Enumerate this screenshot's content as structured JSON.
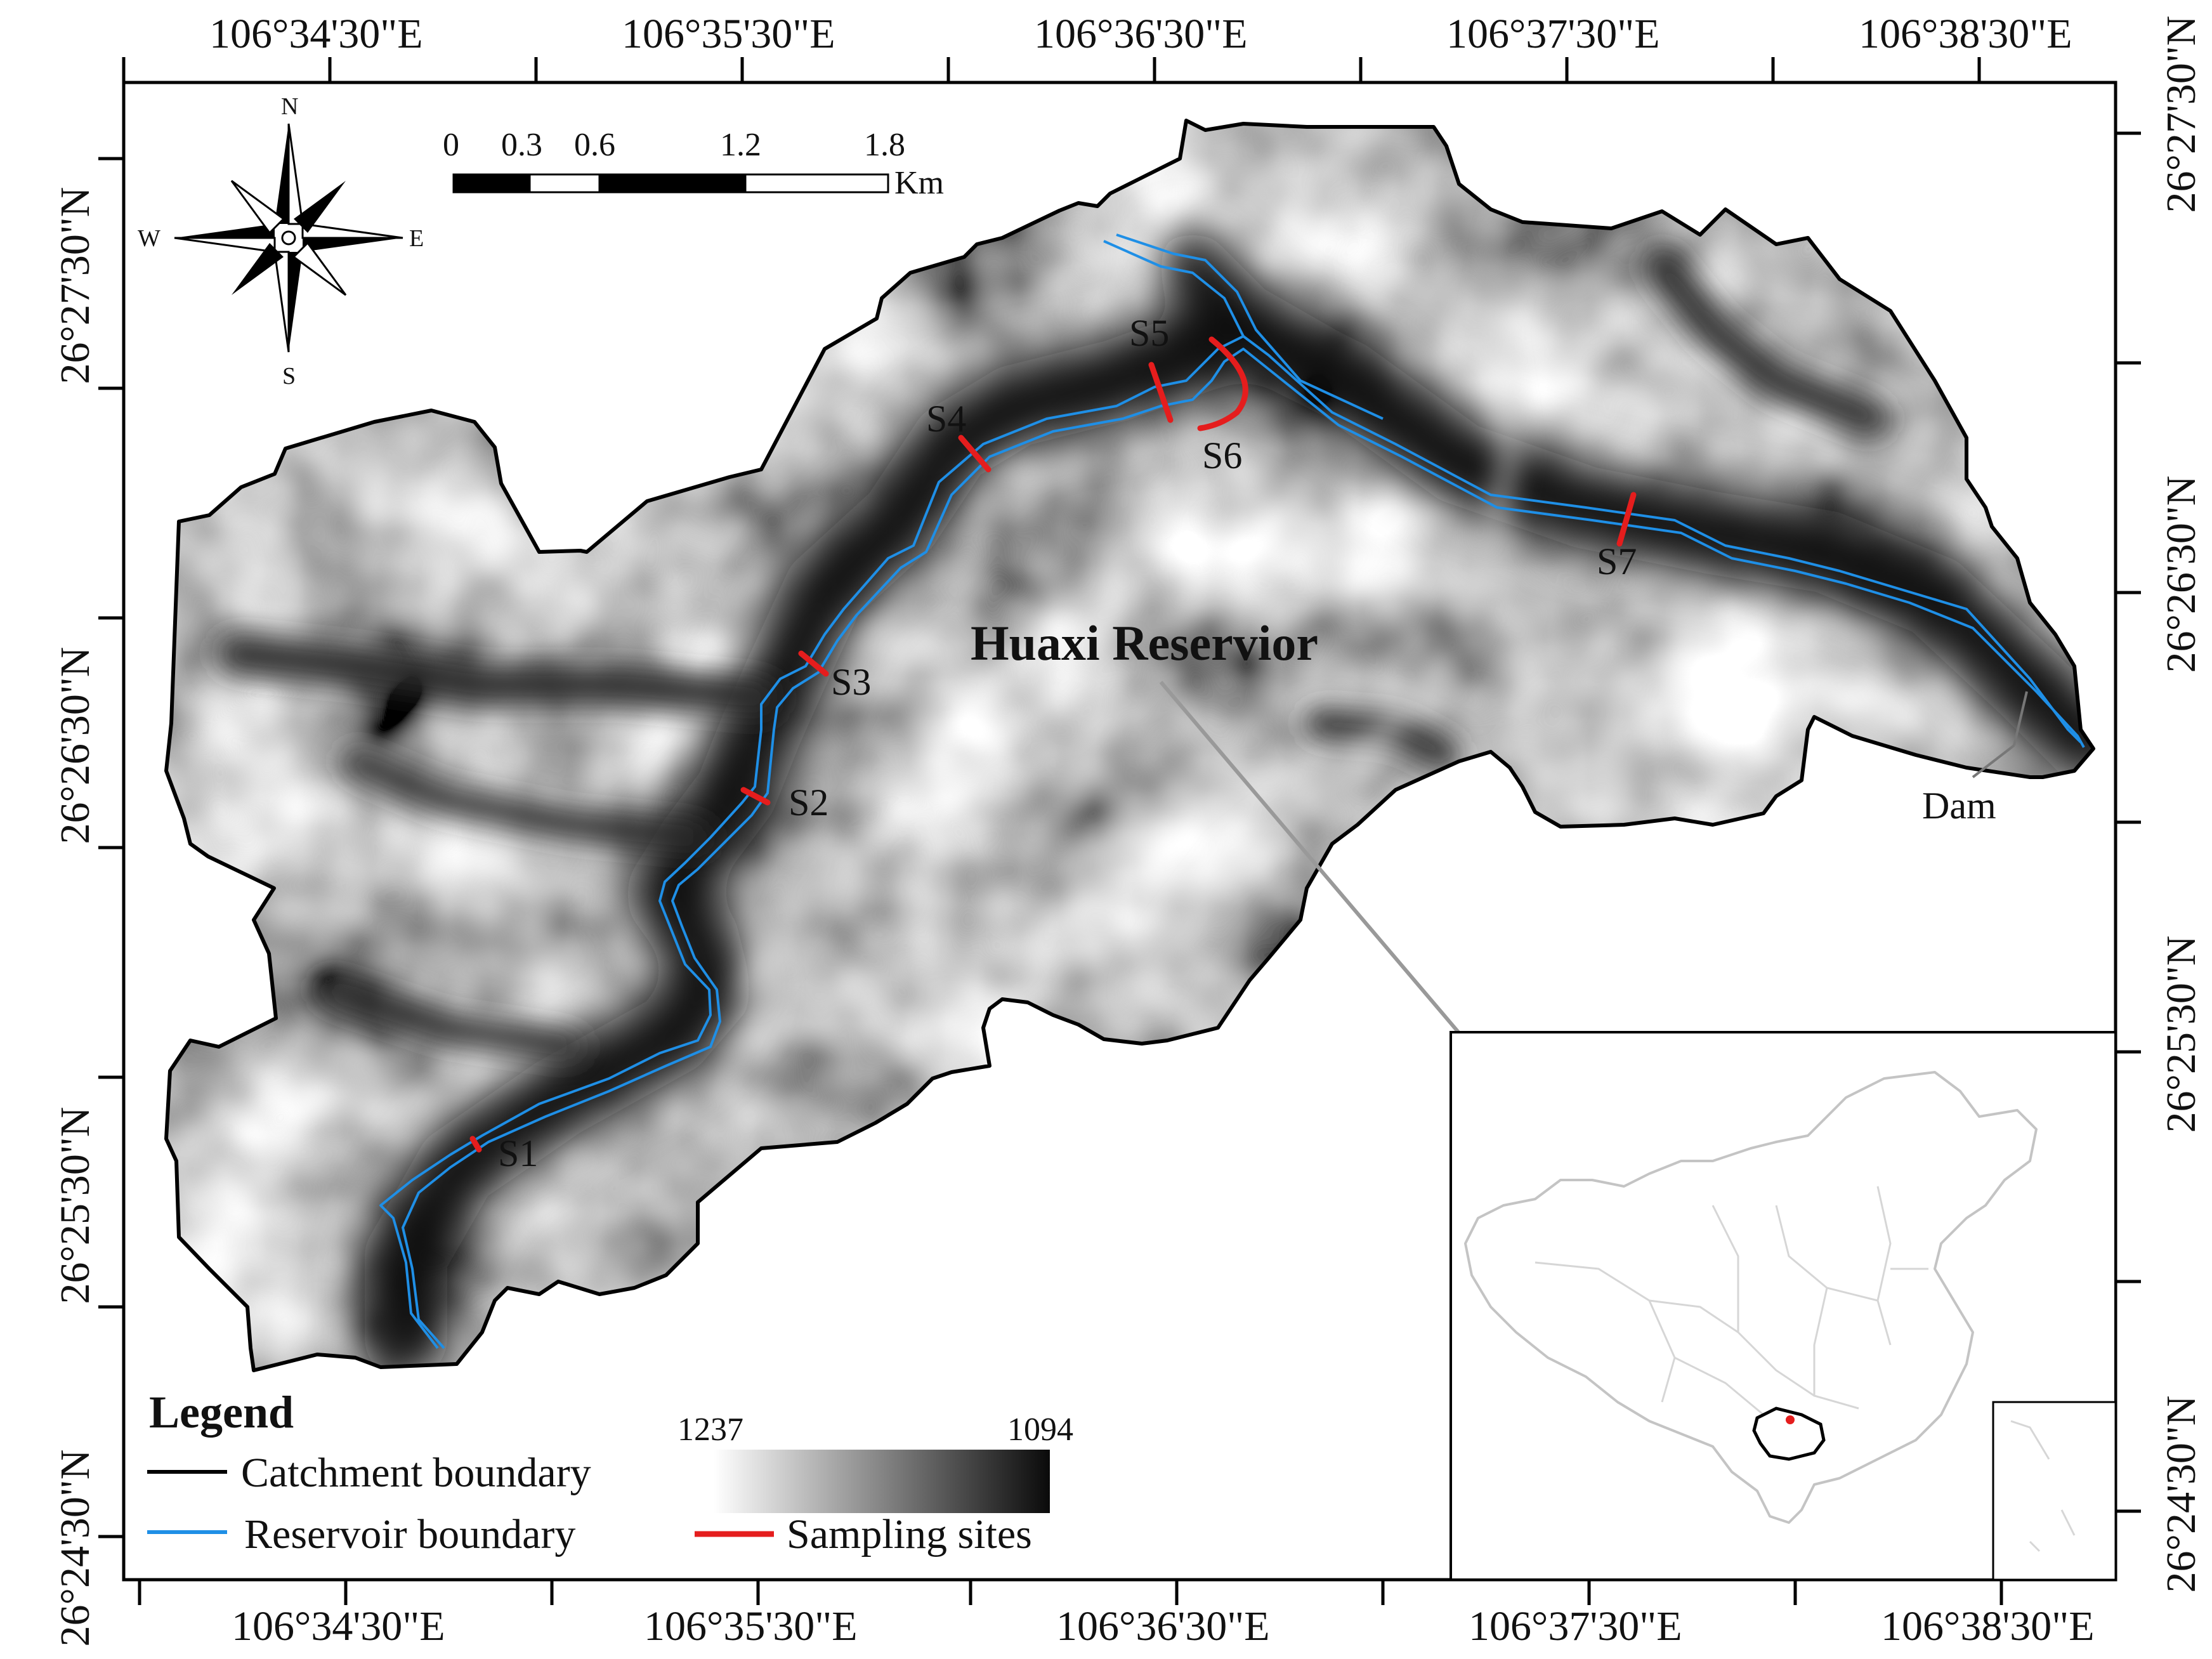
{
  "map": {
    "reservoir_label": "Huaxi Reservior",
    "dam_label": "Dam",
    "lon_labels": [
      "106°34'30\"E",
      "106°35'30\"E",
      "106°36'30\"E",
      "106°37'30\"E",
      "106°38'30\"E"
    ],
    "lat_labels": [
      "26°27'30\"N",
      "26°26'30\"N",
      "26°25'30\"N",
      "26°24'30\"N"
    ],
    "sampling_sites": [
      "S1",
      "S2",
      "S3",
      "S4",
      "S5",
      "S6",
      "S7"
    ],
    "colors": {
      "catchment": "#000000",
      "reservoir": "#1f8fe6",
      "sampling": "#e51d1d",
      "elevation_high": "#ffffff",
      "elevation_low": "#0a0a0a"
    }
  },
  "compass": {
    "north": "N",
    "south": "S",
    "east": "E",
    "west": "W"
  },
  "scale_bar": {
    "ticks": [
      "0",
      "0.3",
      "0.6",
      "1.2",
      "1.8"
    ],
    "unit": "Km"
  },
  "legend": {
    "title": "Legend",
    "catchment": "Catchment boundary",
    "reservoir": "Reservoir boundary",
    "sampling": "Sampling sites",
    "elevation_min_label": "1237",
    "elevation_max_label": "1094"
  }
}
